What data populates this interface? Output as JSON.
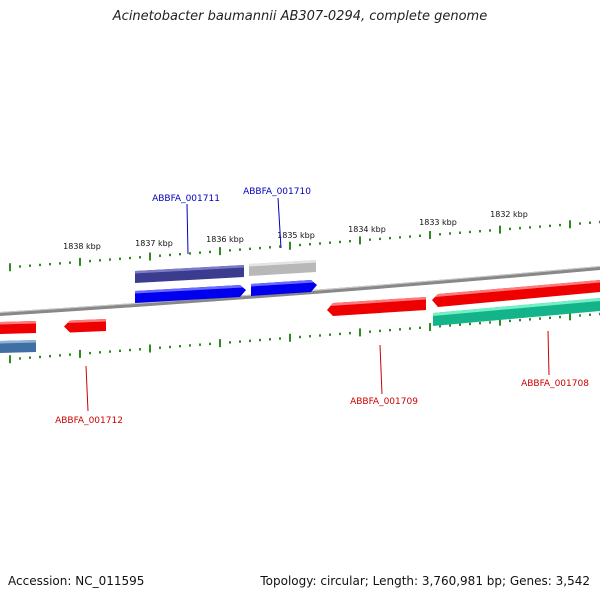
{
  "title": "Acinetobacter baumannii AB307-0294, complete genome",
  "footer": {
    "accession": "Accession: NC_011595",
    "topology": "Topology: circular; Length: 3,760,981 bp; Genes: 3,542"
  },
  "colors": {
    "ticks": "#2e8b22",
    "backbone": "#888888",
    "label_blue": "#0000bb",
    "label_red": "#cc0000"
  },
  "scale_labels": [
    "1838 kbp",
    "1837 kbp",
    "1836 kbp",
    "1835 kbp",
    "1834 kbp",
    "1833 kbp",
    "1832 kbp"
  ],
  "genes": [
    {
      "label": "ABBFA_001711",
      "strand": "plus",
      "color": "blue"
    },
    {
      "label": "ABBFA_001710",
      "strand": "plus",
      "color": "blue"
    },
    {
      "label": "ABBFA_001709",
      "strand": "minus",
      "color": "red"
    },
    {
      "label": "ABBFA_001708",
      "strand": "minus",
      "color": "red"
    },
    {
      "label": "ABBFA_001712",
      "strand": "minus",
      "color": "red"
    }
  ]
}
